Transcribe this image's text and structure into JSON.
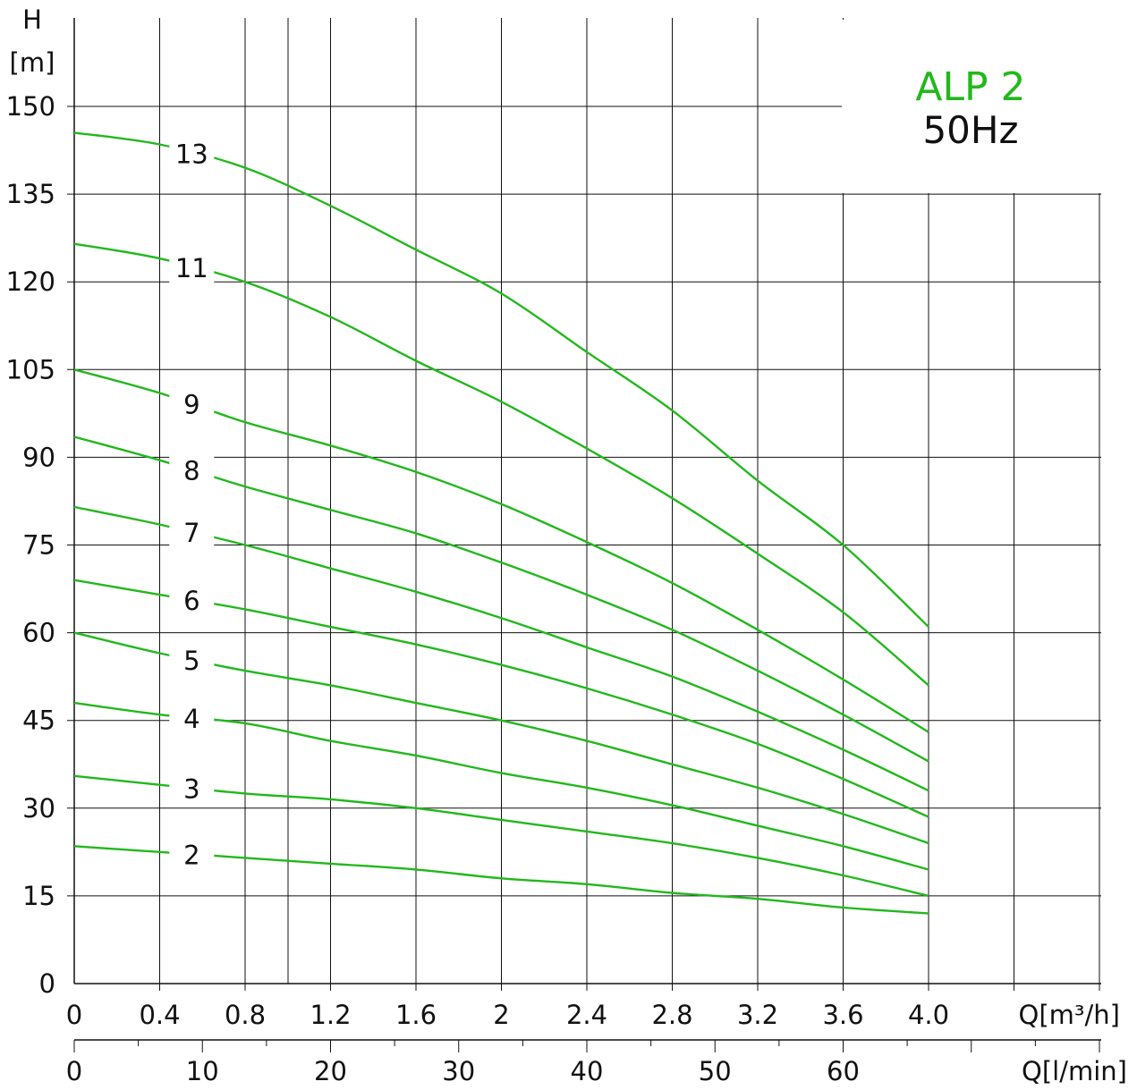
{
  "chart_data": {
    "type": "line",
    "title": "ALP 2",
    "subtitle": "50Hz",
    "title_color": "#22b81c",
    "curve_color": "#22b81c",
    "ylabel_top": "H",
    "ylabel_unit": "[m]",
    "xlabel_m3h": "Q[m³/h]",
    "xlabel_lmin": "Q[l/min]",
    "ylim": [
      0,
      150
    ],
    "xlim_m3h": [
      0,
      4.8
    ],
    "y_ticks": [
      "0",
      "15",
      "30",
      "45",
      "60",
      "75",
      "90",
      "105",
      "120",
      "135",
      "150"
    ],
    "x_ticks_m3h": [
      "0",
      "0.4",
      "0.8",
      "1.2",
      "1.6",
      "2",
      "2.4",
      "2.8",
      "3.2",
      "3.6",
      "4.0"
    ],
    "x_ticks_lmin": [
      "0",
      "10",
      "20",
      "30",
      "40",
      "50",
      "60"
    ],
    "x_lmin_values": [
      0,
      10,
      20,
      30,
      40,
      50,
      60
    ],
    "grid": true,
    "legend": "none",
    "x": [
      0,
      0.4,
      0.8,
      1.2,
      1.6,
      2.0,
      2.4,
      2.8,
      3.2,
      3.6,
      4.0
    ],
    "series": [
      {
        "name": "13",
        "values": [
          145.5,
          143.5,
          139.5,
          133,
          125.5,
          118,
          108,
          98,
          86,
          75,
          61
        ]
      },
      {
        "name": "11",
        "values": [
          126.5,
          124,
          120,
          114,
          106.5,
          99.5,
          91.5,
          83,
          73.5,
          63.5,
          51
        ]
      },
      {
        "name": "9",
        "values": [
          105,
          101,
          96,
          92,
          87.5,
          82,
          75.5,
          68.5,
          60.5,
          52,
          43
        ]
      },
      {
        "name": "8",
        "values": [
          93.5,
          89.5,
          85,
          81,
          77,
          72,
          66.5,
          60.5,
          53.5,
          46,
          38
        ]
      },
      {
        "name": "7",
        "values": [
          81.5,
          78.5,
          75,
          71,
          67,
          62.5,
          57.5,
          52.5,
          46.5,
          40,
          33
        ]
      },
      {
        "name": "6",
        "values": [
          69,
          66.5,
          64,
          61,
          58,
          54.5,
          50.5,
          46,
          41,
          35,
          28.5
        ]
      },
      {
        "name": "5",
        "values": [
          60,
          56.5,
          53.5,
          51,
          48,
          45,
          41.5,
          37.5,
          33.5,
          29,
          24
        ]
      },
      {
        "name": "4",
        "values": [
          48,
          46,
          44.5,
          41.5,
          39,
          36,
          33.5,
          30.5,
          27,
          23.5,
          19.5
        ]
      },
      {
        "name": "3",
        "values": [
          35.5,
          34,
          32.5,
          31.5,
          30,
          28,
          26,
          24,
          21.5,
          18.5,
          15
        ]
      },
      {
        "name": "2",
        "values": [
          23.5,
          22.5,
          21.5,
          20.5,
          19.5,
          18,
          17,
          15.5,
          14.5,
          13,
          12
        ]
      }
    ]
  }
}
